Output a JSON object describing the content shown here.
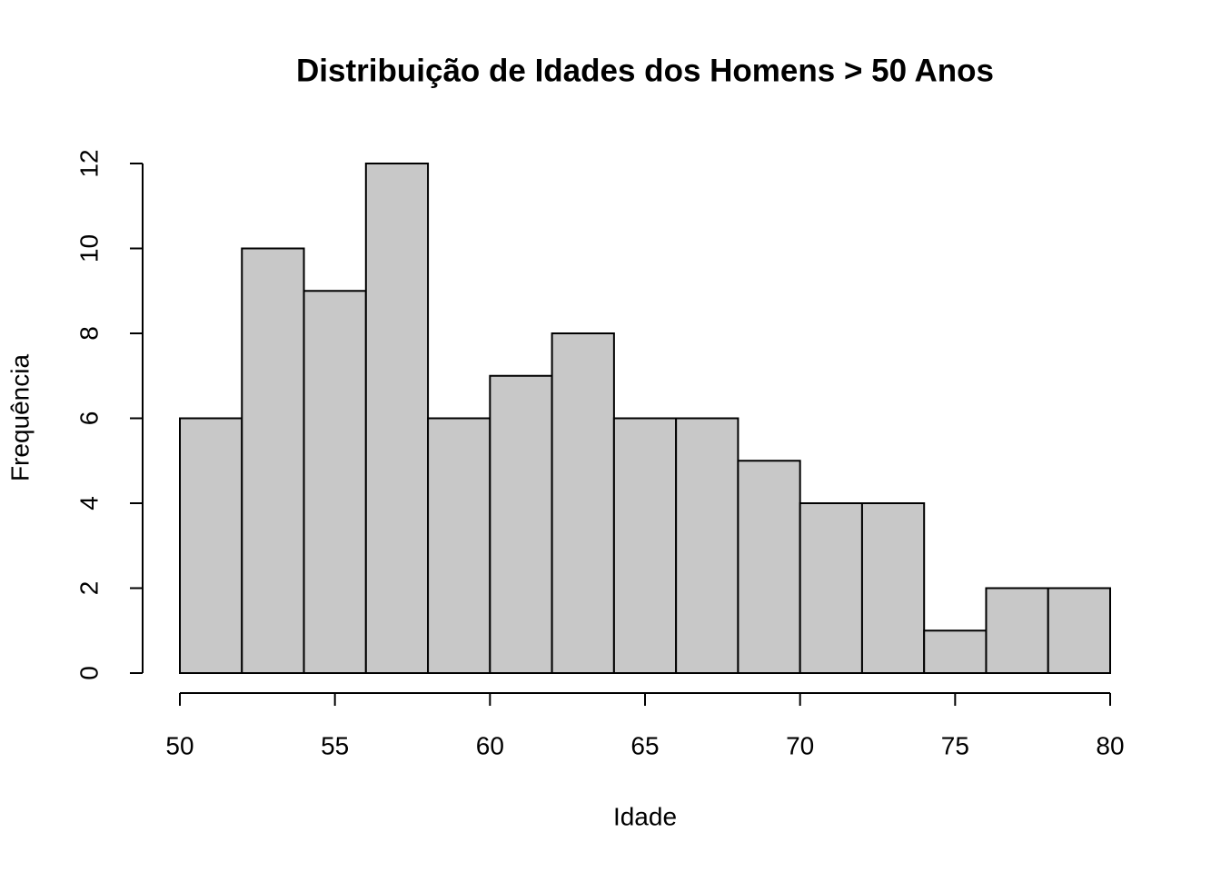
{
  "chart_data": {
    "type": "histogram",
    "title": "Distribuição de Idades dos Homens > 50 Anos",
    "x_label": "Idade",
    "y_label": "Frequência",
    "bins": [
      50,
      52,
      54,
      56,
      58,
      60,
      62,
      64,
      66,
      68,
      70,
      72,
      74,
      76,
      78,
      80
    ],
    "values": [
      6,
      10,
      9,
      12,
      6,
      7,
      8,
      6,
      6,
      5,
      4,
      4,
      1,
      2,
      2
    ],
    "color": "#c8c8c8",
    "xlim": [
      50,
      80
    ],
    "xticks": [
      50,
      55,
      60,
      65,
      70,
      75,
      80
    ],
    "ylim": [
      0,
      12
    ],
    "yticks": [
      0,
      2,
      4,
      6,
      8,
      10,
      12
    ],
    "grid": false
  }
}
